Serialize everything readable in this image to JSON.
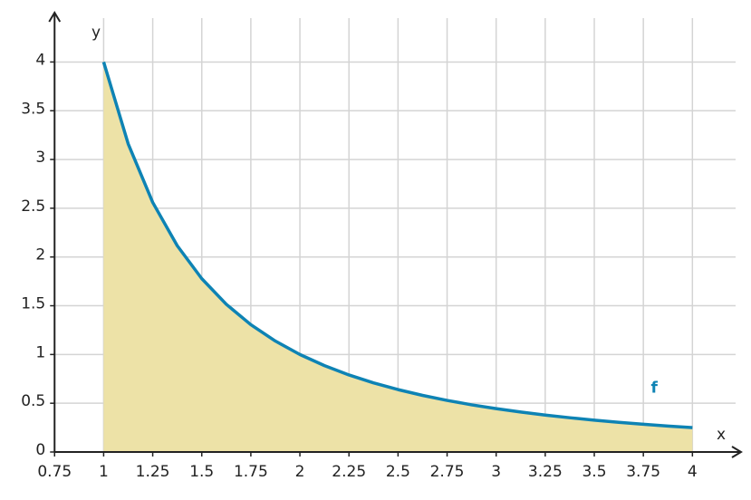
{
  "chart_data": {
    "type": "area",
    "x_label": "x",
    "y_label": "y",
    "series": [
      {
        "name": "f",
        "color": "#0e83b4",
        "fill": "#ede2a7",
        "x": [
          1,
          1.125,
          1.25,
          1.375,
          1.5,
          1.625,
          1.75,
          1.875,
          2,
          2.125,
          2.25,
          2.375,
          2.5,
          2.625,
          2.75,
          2.875,
          3,
          3.125,
          3.25,
          3.375,
          3.5,
          3.625,
          3.75,
          3.875,
          4
        ],
        "values": [
          4,
          3.1605,
          2.56,
          2.1157,
          1.7778,
          1.5148,
          1.3061,
          1.1378,
          1,
          0.8858,
          0.7901,
          0.7091,
          0.64,
          0.5805,
          0.5289,
          0.4839,
          0.4444,
          0.4096,
          0.3787,
          0.3512,
          0.3265,
          0.3044,
          0.2844,
          0.2664,
          0.25
        ]
      }
    ],
    "xlim": [
      0.75,
      4.22
    ],
    "ylim": [
      0,
      4.45
    ],
    "xticks": [
      0.75,
      1,
      1.25,
      1.5,
      1.75,
      2,
      2.25,
      2.5,
      2.75,
      3,
      3.25,
      3.5,
      3.75,
      4
    ],
    "yticks": [
      0,
      0.5,
      1,
      1.5,
      2,
      2.5,
      3,
      3.5,
      4
    ],
    "grid": true
  }
}
